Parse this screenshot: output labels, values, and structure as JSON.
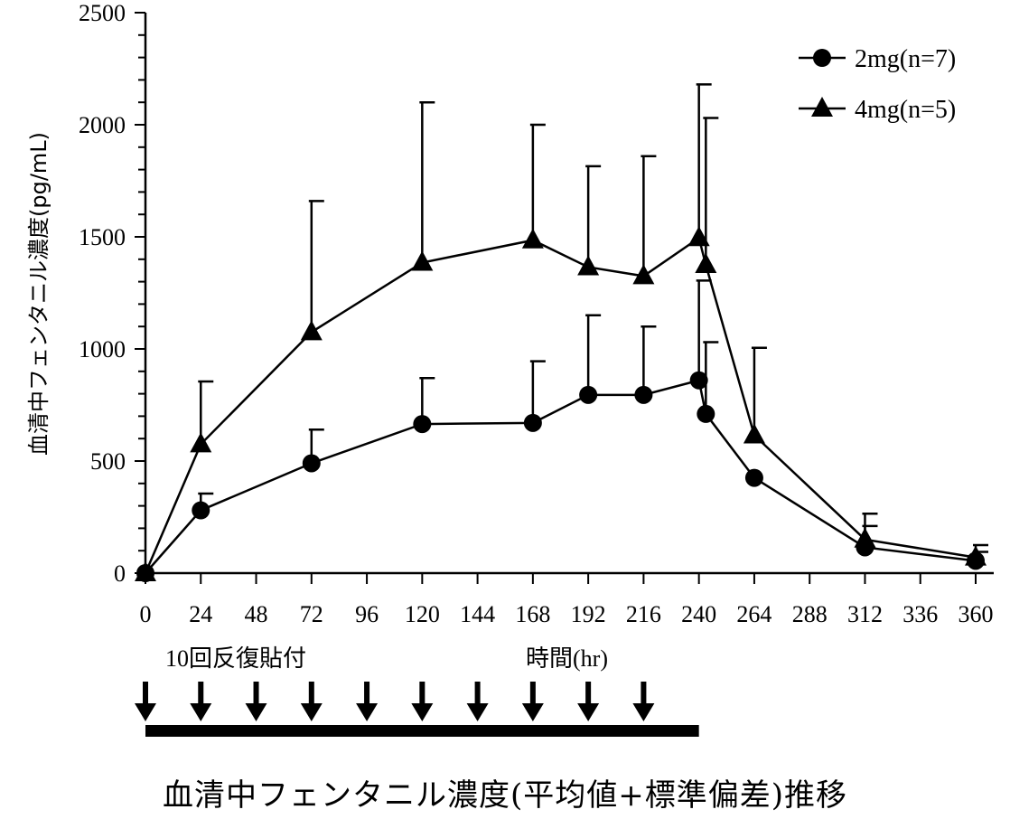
{
  "caption": "血清中フェンタニル濃度(平均値+標準偏差)推移",
  "chart_data": {
    "type": "line",
    "ylabel": "血清中フェンタニル濃度(pg/mL)",
    "xlabel": "時間(hr)",
    "dosing_label": "10回反復貼付",
    "x_ticks": [
      0,
      24,
      48,
      72,
      96,
      120,
      144,
      168,
      192,
      216,
      240,
      264,
      288,
      312,
      336,
      360
    ],
    "y_ticks": [
      0,
      500,
      1000,
      1500,
      2000,
      2500
    ],
    "xlim": [
      0,
      360
    ],
    "ylim": [
      0,
      2500
    ],
    "grid": false,
    "legend_position": "top-right",
    "dose_times": [
      0,
      24,
      48,
      72,
      96,
      120,
      144,
      168,
      192,
      216
    ],
    "dosing_period": [
      0,
      240
    ],
    "series": [
      {
        "name": "2mg(n=7)",
        "marker": "circle",
        "x": [
          0,
          24,
          72,
          120,
          168,
          192,
          216,
          240,
          243,
          264,
          312,
          360
        ],
        "y": [
          0,
          280,
          490,
          665,
          670,
          795,
          795,
          860,
          710,
          425,
          115,
          55
        ],
        "sd": [
          0,
          75,
          150,
          205,
          275,
          355,
          305,
          445,
          320,
          0,
          95,
          40
        ]
      },
      {
        "name": "4mg(n=5)",
        "marker": "triangle",
        "x": [
          0,
          24,
          72,
          120,
          168,
          192,
          216,
          240,
          243,
          264,
          312,
          360
        ],
        "y": [
          0,
          575,
          1075,
          1385,
          1485,
          1365,
          1325,
          1495,
          1375,
          615,
          150,
          70
        ],
        "sd": [
          0,
          280,
          585,
          715,
          515,
          450,
          535,
          685,
          655,
          390,
          115,
          55
        ]
      }
    ]
  }
}
